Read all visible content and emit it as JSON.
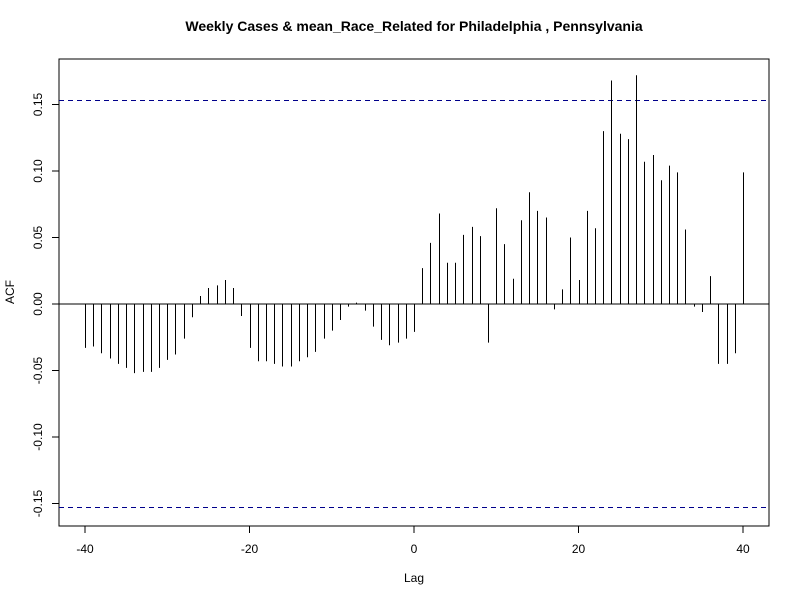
{
  "chart_data": {
    "type": "bar",
    "title": "Weekly Cases & mean_Race_Related for Philadelphia , Pennsylvania",
    "xlabel": "Lag",
    "ylabel": "ACF",
    "xlim": [
      -40,
      40
    ],
    "ylim": [
      -0.15,
      0.17
    ],
    "x_ticks": [
      -40,
      -20,
      0,
      20,
      40
    ],
    "x_tick_labels": [
      "-40",
      "-20",
      "0",
      "20",
      "40"
    ],
    "y_ticks": [
      -0.15,
      -0.1,
      -0.05,
      0.0,
      0.05,
      0.1,
      0.15
    ],
    "y_tick_labels": [
      "-0.15",
      "-0.10",
      "-0.05",
      "0.00",
      "0.05",
      "0.10",
      "0.15"
    ],
    "grid": false,
    "confidence_bound": 0.153,
    "bound_color": "#00008B",
    "lags": [
      -40,
      -39,
      -38,
      -37,
      -36,
      -35,
      -34,
      -33,
      -32,
      -31,
      -30,
      -29,
      -28,
      -27,
      -26,
      -25,
      -24,
      -23,
      -22,
      -21,
      -20,
      -19,
      -18,
      -17,
      -16,
      -15,
      -14,
      -13,
      -12,
      -11,
      -10,
      -9,
      -8,
      -7,
      -6,
      -5,
      -4,
      -3,
      -2,
      -1,
      0,
      1,
      2,
      3,
      4,
      5,
      6,
      7,
      8,
      9,
      10,
      11,
      12,
      13,
      14,
      15,
      16,
      17,
      18,
      19,
      20,
      21,
      22,
      23,
      24,
      25,
      26,
      27,
      28,
      29,
      30,
      31,
      32,
      33,
      34,
      35,
      36,
      37,
      38,
      39,
      40
    ],
    "values": [
      -0.033,
      -0.032,
      -0.037,
      -0.041,
      -0.045,
      -0.048,
      -0.052,
      -0.051,
      -0.051,
      -0.048,
      -0.042,
      -0.038,
      -0.026,
      -0.01,
      0.006,
      0.012,
      0.014,
      0.018,
      0.012,
      -0.009,
      -0.033,
      -0.043,
      -0.043,
      -0.045,
      -0.047,
      -0.047,
      -0.043,
      -0.04,
      -0.036,
      -0.026,
      -0.02,
      -0.012,
      -0.002,
      0.001,
      -0.005,
      -0.017,
      -0.027,
      -0.031,
      -0.029,
      -0.026,
      -0.021,
      0.027,
      0.046,
      0.068,
      0.031,
      0.031,
      0.052,
      0.058,
      0.051,
      -0.029,
      0.072,
      0.045,
      0.019,
      0.063,
      0.084,
      0.07,
      0.065,
      -0.004,
      0.011,
      0.05,
      0.018,
      0.07,
      0.057,
      0.13,
      0.168,
      0.128,
      0.124,
      0.172,
      0.107,
      0.112,
      0.093,
      0.104,
      0.099,
      0.056,
      -0.002,
      -0.006,
      0.021,
      -0.045,
      -0.045,
      -0.037,
      0.099
    ]
  }
}
